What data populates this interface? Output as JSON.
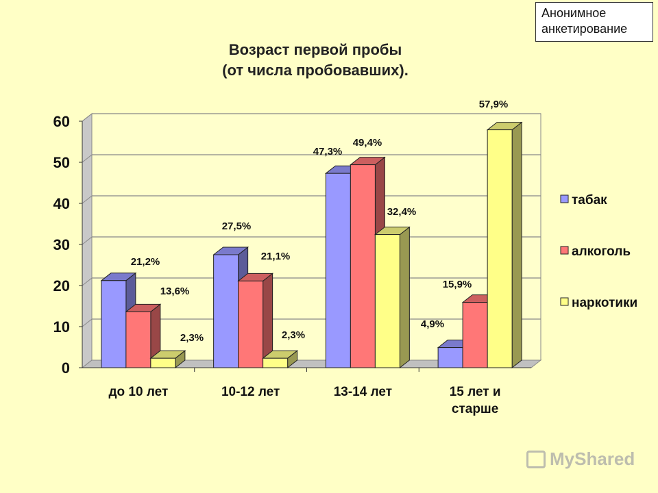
{
  "tag": {
    "line1": "Анонимное",
    "line2": "анкетирование"
  },
  "title_line1": "Возраст первой пробы",
  "title_line2": "(от числа пробовавших).",
  "watermark": "MyShared",
  "chart_data": {
    "type": "bar",
    "categories": [
      [
        "до 10 лет"
      ],
      [
        "10-12 лет"
      ],
      [
        "13-14 лет"
      ],
      [
        "15 лет и",
        "старше"
      ]
    ],
    "series": [
      {
        "name": "табак",
        "color": "#9999ff",
        "values": [
          21.2,
          27.5,
          47.3,
          4.9
        ],
        "labels": [
          "21,2%",
          "27,5%",
          "47,3%",
          "4,9%"
        ]
      },
      {
        "name": "алкоголь",
        "color": "#ff7777",
        "values": [
          13.6,
          21.1,
          49.4,
          15.9
        ],
        "labels": [
          "13,6%",
          "21,1%",
          "49,4%",
          "15,9%"
        ]
      },
      {
        "name": "наркотики",
        "color": "#ffff88",
        "values": [
          2.3,
          2.3,
          32.4,
          57.9
        ],
        "labels": [
          "2,3%",
          "2,3%",
          "32,4%",
          "57,9%"
        ]
      }
    ],
    "ylim": [
      0,
      60
    ],
    "yticks": [
      0,
      10,
      20,
      30,
      40,
      50,
      60
    ],
    "grid": true,
    "legend_position": "right"
  }
}
